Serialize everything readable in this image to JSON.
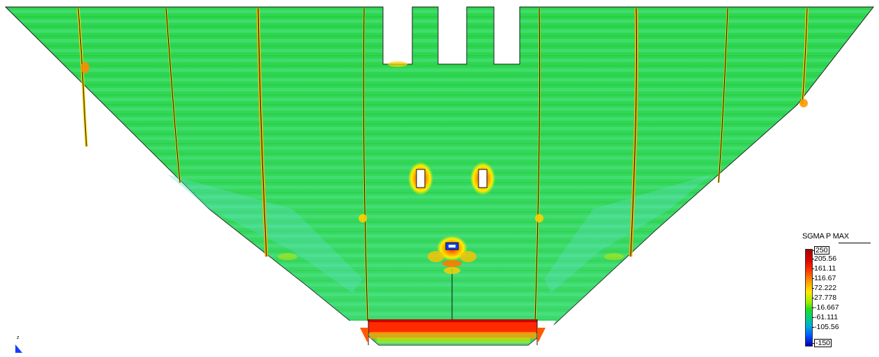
{
  "legend": {
    "title": "SGMA P MAX",
    "max_label": "250",
    "min_label": "-150",
    "ticks": [
      "205.56",
      "161.11",
      "116.67",
      "72.222",
      "27.778",
      "-16.667",
      "-61.111",
      "-105.56"
    ]
  },
  "axis": {
    "label": "z"
  },
  "colors": {
    "field": "#2ed64e",
    "field_light": "#3fdc6b",
    "field_dark": "#1fcf3e",
    "hot": "#ff2200",
    "warm": "#ffcc00",
    "cold": "#00a8ff",
    "coldest": "#0000b0"
  }
}
